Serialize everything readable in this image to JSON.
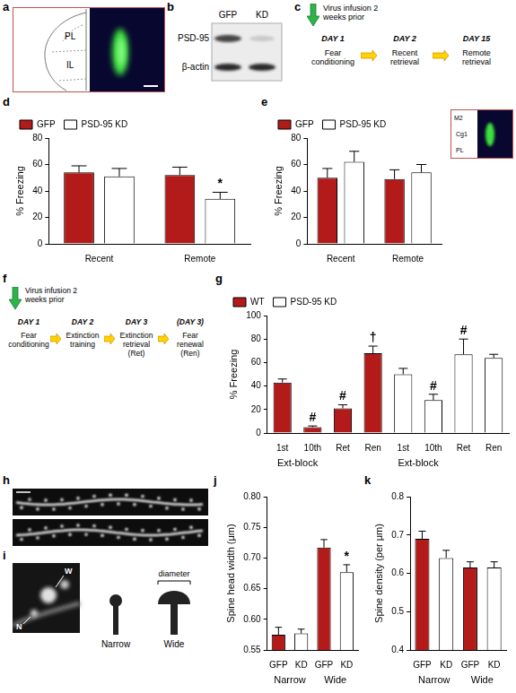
{
  "panels": {
    "schematic": {
      "letter": "a",
      "labels": [
        "PL",
        "IL"
      ]
    },
    "blot": {
      "letter": "b",
      "lanes": [
        "GFP",
        "KD"
      ],
      "rows": [
        "PSD-95",
        "β-actin"
      ]
    },
    "timeline1": {
      "letter": "c",
      "infusion": "Virus infusion 2 weeks prior",
      "steps": [
        {
          "day": "DAY 1",
          "event": "Fear conditioning"
        },
        {
          "day": "DAY 2",
          "event": "Recent retrieval"
        },
        {
          "day": "DAY 15",
          "event": "Remote retrieval"
        }
      ]
    },
    "timeline2": {
      "letter": "f",
      "infusion": "Virus infusion 2 weeks prior",
      "steps": [
        {
          "day": "DAY 1",
          "event": "Fear conditioning"
        },
        {
          "day": "DAY 2",
          "event": "Extinction training"
        },
        {
          "day": "DAY 3",
          "event": "Extinction retrieval (Ret)"
        },
        {
          "day": "(DAY 3)",
          "event": "Fear renewal (Ren)"
        }
      ]
    },
    "dendrites": {
      "letter": "h"
    },
    "spines": {
      "letter": "i",
      "image_labels": [
        "W",
        "N"
      ],
      "shapes": [
        "Narrow",
        "Wide"
      ],
      "measure": "diameter"
    }
  },
  "chart_data": [
    {
      "panel": "d",
      "type": "bar",
      "categories": [
        "Recent",
        "Remote"
      ],
      "y_label": "% Freezing",
      "ylim": [
        0,
        80
      ],
      "yticks": [
        0,
        20,
        40,
        60,
        80
      ],
      "grid": false,
      "legend": "top-left",
      "series": [
        {
          "name": "GFP",
          "color": "#b31b1b",
          "values": [
            54,
            52
          ],
          "errors": [
            5,
            6
          ],
          "marks": [
            null,
            null
          ]
        },
        {
          "name": "PSD-95 KD",
          "color": "#ffffff",
          "values": [
            51,
            34
          ],
          "errors": [
            6,
            5
          ],
          "marks": [
            null,
            "*"
          ]
        }
      ]
    },
    {
      "panel": "e",
      "type": "bar",
      "categories": [
        "Recent",
        "Remote"
      ],
      "y_label": "% Freezing",
      "ylim": [
        0,
        80
      ],
      "yticks": [
        0,
        20,
        40,
        60,
        80
      ],
      "grid": false,
      "legend": "top-left",
      "inset_labels": [
        "M2",
        "Cg1",
        "PL"
      ],
      "series": [
        {
          "name": "GFP",
          "color": "#b31b1b",
          "values": [
            50,
            49
          ],
          "errors": [
            7,
            7
          ],
          "marks": [
            null,
            null
          ]
        },
        {
          "name": "PSD-95 KD",
          "color": "#ffffff",
          "values": [
            62,
            54
          ],
          "errors": [
            8,
            6
          ],
          "marks": [
            null,
            null
          ]
        }
      ]
    },
    {
      "panel": "g",
      "type": "bar",
      "categories": [
        "1st",
        "10th",
        "Ret",
        "Ren",
        "1st",
        "10th",
        "Ret",
        "Ren"
      ],
      "category_groups": [
        "Ext-block",
        "Ext-block",
        null,
        null,
        "Ext-block",
        "Ext-block",
        null,
        null
      ],
      "y_label": "% Freezing",
      "ylim": [
        0,
        100
      ],
      "yticks": [
        0,
        20,
        40,
        60,
        80,
        100
      ],
      "grid": false,
      "legend": "top-left",
      "series": [
        {
          "name": "WT",
          "color": "#b31b1b",
          "values": [
            43,
            5,
            21,
            68,
            null,
            null,
            null,
            null
          ],
          "errors": [
            3,
            1,
            3,
            6,
            null,
            null,
            null,
            null
          ],
          "marks": [
            null,
            "#",
            "#",
            "†",
            null,
            null,
            null,
            null
          ]
        },
        {
          "name": "PSD-95 KD",
          "color": "#ffffff",
          "values": [
            null,
            null,
            null,
            null,
            50,
            28,
            67,
            64
          ],
          "errors": [
            null,
            null,
            null,
            null,
            5,
            5,
            13,
            3
          ],
          "marks": [
            null,
            null,
            null,
            null,
            null,
            "#",
            "#",
            null
          ]
        }
      ]
    },
    {
      "panel": "j",
      "type": "bar",
      "categories": [
        "GFP",
        "KD",
        "GFP",
        "KD"
      ],
      "category_groups": [
        "Narrow",
        "Narrow",
        "Wide",
        "Wide"
      ],
      "y_label": "Spine head width (μm)",
      "ylim": [
        0.55,
        0.8
      ],
      "yticks": [
        0.55,
        {
          "value": 0.6,
          "label": "0.60"
        },
        0.65,
        {
          "value": 0.7,
          "label": "0.70"
        },
        0.75,
        {
          "value": 0.8,
          "label": "0.80"
        }
      ],
      "grid": false,
      "values": [
        0.575,
        0.577,
        0.717,
        0.677
      ],
      "errors": [
        0.012,
        0.007,
        0.013,
        0.012
      ],
      "colors": [
        "#b31b1b",
        "#ffffff",
        "#b31b1b",
        "#ffffff"
      ],
      "marks": [
        null,
        null,
        null,
        "*"
      ]
    },
    {
      "panel": "k",
      "type": "bar",
      "categories": [
        "GFP",
        "KD",
        "GFP",
        "KD"
      ],
      "category_groups": [
        "Narrow",
        "Narrow",
        "Wide",
        "Wide"
      ],
      "y_label": "Spine density (per μm)",
      "ylim": [
        0.4,
        0.8
      ],
      "yticks": [
        0.4,
        0.5,
        0.6,
        0.7,
        0.8
      ],
      "grid": false,
      "values": [
        0.69,
        0.64,
        0.615,
        0.615
      ],
      "errors": [
        0.02,
        0.02,
        0.015,
        0.015
      ],
      "colors": [
        "#b31b1b",
        "#ffffff",
        "#b31b1b",
        "#ffffff"
      ],
      "marks": [
        null,
        null,
        null,
        null
      ]
    }
  ]
}
